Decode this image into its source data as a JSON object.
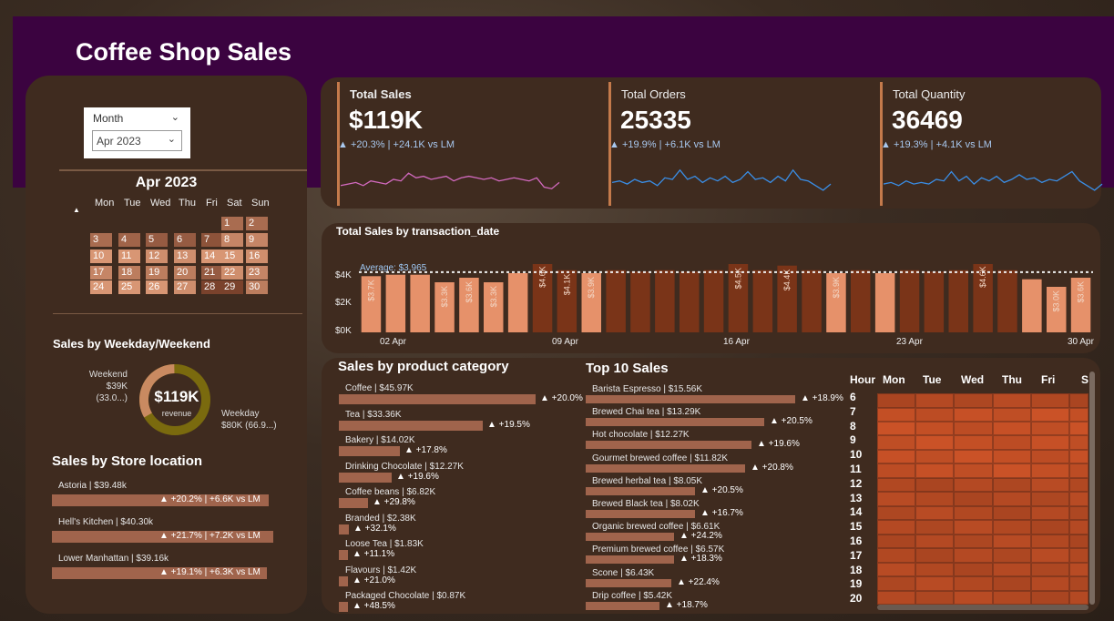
{
  "header": {
    "title": "Coffee Shop Sales"
  },
  "slicer": {
    "label": "Month",
    "value": "Apr 2023"
  },
  "calendar": {
    "title": "Apr 2023",
    "weekdays": [
      "Mon",
      "Tue",
      "Wed",
      "Thu",
      "Fri",
      "Sat",
      "Sun"
    ],
    "days": [
      {
        "d": "1",
        "s": 0.5
      },
      {
        "d": "2",
        "s": 0.5
      },
      {
        "d": "3",
        "s": 0.5
      },
      {
        "d": "4",
        "s": 0.4
      },
      {
        "d": "5",
        "s": 0.3
      },
      {
        "d": "6",
        "s": 0.3
      },
      {
        "d": "7",
        "s": 0.2
      },
      {
        "d": "8",
        "s": 0.8
      },
      {
        "d": "9",
        "s": 0.8
      },
      {
        "d": "10",
        "s": 1.0
      },
      {
        "d": "11",
        "s": 1.0
      },
      {
        "d": "12",
        "s": 0.9
      },
      {
        "d": "13",
        "s": 0.9
      },
      {
        "d": "14",
        "s": 1.0
      },
      {
        "d": "15",
        "s": 1.0
      },
      {
        "d": "16",
        "s": 0.9
      },
      {
        "d": "17",
        "s": 0.8
      },
      {
        "d": "18",
        "s": 0.7
      },
      {
        "d": "19",
        "s": 0.7
      },
      {
        "d": "20",
        "s": 0.7
      },
      {
        "d": "21",
        "s": 0.3
      },
      {
        "d": "22",
        "s": 0.9
      },
      {
        "d": "23",
        "s": 0.8
      },
      {
        "d": "24",
        "s": 1.0
      },
      {
        "d": "25",
        "s": 1.0
      },
      {
        "d": "26",
        "s": 1.0
      },
      {
        "d": "27",
        "s": 0.9
      },
      {
        "d": "28",
        "s": 0.0
      },
      {
        "d": "29",
        "s": 0.0
      },
      {
        "d": "30",
        "s": 0.7
      }
    ],
    "marker": "▲"
  },
  "weekday_weekend": {
    "title": "Sales by Weekday/Weekend",
    "center_value": "$119K",
    "center_label": "revenue",
    "weekend_name": "Weekend",
    "weekend_value": "$39K (33.0...)",
    "weekday_name": "Weekday",
    "weekday_value": "$80K (66.9...)",
    "weekend_share": 0.33
  },
  "store_location": {
    "title": "Sales by Store location",
    "items": [
      {
        "label": "Astoria | $39.48k",
        "delta": "▲ +20.2% | +6.6K vs LM",
        "frac": 0.98
      },
      {
        "label": "Hell's Kitchen | $40.30k",
        "delta": "▲ +21.7% | +7.2K vs LM",
        "frac": 1.0
      },
      {
        "label": "Lower Manhattan | $39.16k",
        "delta": "▲ +19.1% | +6.3K vs LM",
        "frac": 0.97
      }
    ]
  },
  "kpis": [
    {
      "label": "Total Sales",
      "value": "$119K",
      "delta": "▲ +20.3% | +24.1K vs LM",
      "color": "#d36ac0",
      "bold": true
    },
    {
      "label": "Total Orders",
      "value": "25335",
      "delta": "▲ +19.9% | +6.1K vs LM",
      "color": "#3a8ee6",
      "bold": false
    },
    {
      "label": "Total Quantity",
      "value": "36469",
      "delta": "▲ +19.3% | +4.1K vs LM",
      "color": "#3a8ee6",
      "bold": false
    }
  ],
  "trend": {
    "title": "Total Sales by transaction_date",
    "average_label": "Average: $3,965",
    "y_ticks": [
      "$4K",
      "$2K",
      "$0K"
    ],
    "x_ticks": [
      "02 Apr",
      "09 Apr",
      "16 Apr",
      "23 Apr",
      "30 Apr"
    ]
  },
  "chart_data": {
    "type": "bar",
    "title": "Total Sales by transaction_date",
    "average": 3965,
    "ylim": [
      0,
      4500
    ],
    "categories": [
      "01 Apr",
      "02 Apr",
      "03 Apr",
      "04 Apr",
      "05 Apr",
      "06 Apr",
      "07 Apr",
      "08 Apr",
      "09 Apr",
      "10 Apr",
      "11 Apr",
      "12 Apr",
      "13 Apr",
      "14 Apr",
      "15 Apr",
      "16 Apr",
      "17 Apr",
      "18 Apr",
      "19 Apr",
      "20 Apr",
      "21 Apr",
      "22 Apr",
      "23 Apr",
      "24 Apr",
      "25 Apr",
      "26 Apr",
      "27 Apr",
      "28 Apr",
      "29 Apr",
      "30 Apr"
    ],
    "values": [
      3700,
      3800,
      3800,
      3300,
      3600,
      3300,
      3900,
      4600,
      4100,
      3900,
      4100,
      4000,
      4100,
      4000,
      4100,
      4500,
      4100,
      4400,
      4100,
      3900,
      4100,
      3900,
      4100,
      4000,
      4100,
      4600,
      4100,
      3500,
      3000,
      3600
    ],
    "data_labels": [
      "$3.7K",
      "",
      "",
      "$3.3K",
      "$3.6K",
      "$3.3K",
      "",
      "$4.6K",
      "$4.1K",
      "$3.9K",
      "",
      "",
      "",
      "",
      "",
      "$4.5K",
      "",
      "$4.4K",
      "",
      "$3.9K",
      "",
      "",
      "",
      "",
      "",
      "$4.6K",
      "",
      "",
      "$3.0K",
      "$3.6K"
    ],
    "above_average": [
      false,
      false,
      false,
      false,
      false,
      false,
      false,
      true,
      true,
      false,
      true,
      true,
      true,
      true,
      true,
      true,
      true,
      true,
      true,
      false,
      true,
      false,
      true,
      true,
      true,
      true,
      true,
      false,
      false,
      false
    ]
  },
  "product_category": {
    "title": "Sales by product category",
    "items": [
      {
        "label": "Coffee | $45.97K",
        "delta": "▲ +20.0%",
        "frac": 1.0
      },
      {
        "label": "Tea | $33.36K",
        "delta": "▲ +19.5%",
        "frac": 0.73
      },
      {
        "label": "Bakery | $14.02K",
        "delta": "▲ +17.8%",
        "frac": 0.31
      },
      {
        "label": "Drinking Chocolate | $12.27K",
        "delta": "▲ +19.6%",
        "frac": 0.27
      },
      {
        "label": "Coffee beans | $6.82K",
        "delta": "▲ +29.8%",
        "frac": 0.15
      },
      {
        "label": "Branded | $2.38K",
        "delta": "▲ +32.1%",
        "frac": 0.05
      },
      {
        "label": "Loose Tea | $1.83K",
        "delta": "▲ +11.1%",
        "frac": 0.04
      },
      {
        "label": "Flavours | $1.42K",
        "delta": "▲ +21.0%",
        "frac": 0.03
      },
      {
        "label": "Packaged Chocolate | $0.87K",
        "delta": "▲ +48.5%",
        "frac": 0.02
      }
    ]
  },
  "top10": {
    "title": "Top 10 Sales",
    "items": [
      {
        "label": "Barista Espresso | $15.56K",
        "delta": "▲ +18.9%",
        "frac": 1.0
      },
      {
        "label": "Brewed Chai tea | $13.29K",
        "delta": "▲ +20.5%",
        "frac": 0.85
      },
      {
        "label": "Hot chocolate | $12.27K",
        "delta": "▲ +19.6%",
        "frac": 0.79
      },
      {
        "label": "Gourmet brewed coffee | $11.82K",
        "delta": "▲ +20.8%",
        "frac": 0.76
      },
      {
        "label": "Brewed herbal tea | $8.05K",
        "delta": "▲ +20.5%",
        "frac": 0.52
      },
      {
        "label": "Brewed Black tea | $8.02K",
        "delta": "▲ +16.7%",
        "frac": 0.52
      },
      {
        "label": "Organic brewed coffee | $6.61K",
        "delta": "▲ +24.2%",
        "frac": 0.42
      },
      {
        "label": "Premium brewed coffee | $6.57K",
        "delta": "▲ +18.3%",
        "frac": 0.42
      },
      {
        "label": "Scone | $6.43K",
        "delta": "▲ +22.4%",
        "frac": 0.41
      },
      {
        "label": "Drip coffee | $5.42K",
        "delta": "▲ +18.7%",
        "frac": 0.35
      }
    ]
  },
  "heatmap": {
    "hour_label": "Hour",
    "days": [
      "Mon",
      "Tue",
      "Wed",
      "Thu",
      "Fri",
      "S"
    ],
    "hours": [
      "6",
      "7",
      "8",
      "9",
      "10",
      "11",
      "12",
      "13",
      "14",
      "15",
      "16",
      "17",
      "18",
      "19",
      "20"
    ]
  }
}
